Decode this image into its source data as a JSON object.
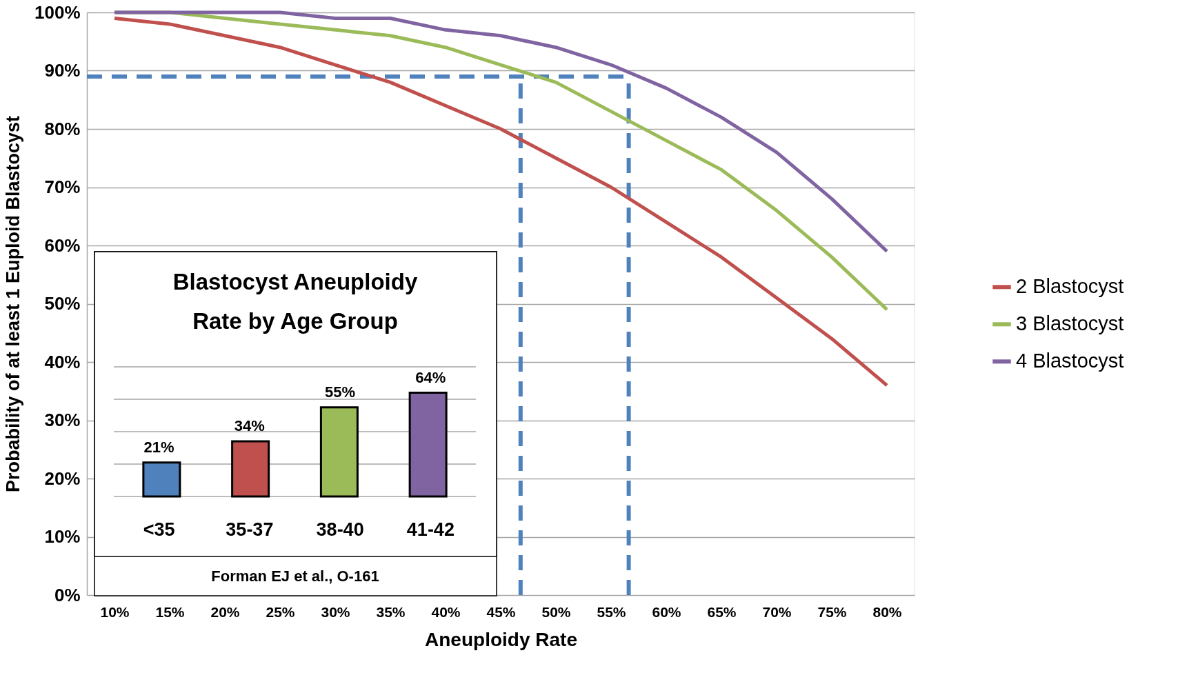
{
  "chart_data": [
    {
      "type": "line",
      "xlabel": "Aneuploidy Rate",
      "ylabel": "Probability of at least 1 Euploid Blastocyst",
      "x": [
        10,
        15,
        20,
        25,
        30,
        35,
        40,
        45,
        50,
        55,
        60,
        65,
        70,
        75,
        80
      ],
      "xlim": [
        7.5,
        82.5
      ],
      "xticks": [
        {
          "value": 10,
          "label": "10%"
        },
        {
          "value": 15,
          "label": "15%"
        },
        {
          "value": 20,
          "label": "20%"
        },
        {
          "value": 25,
          "label": "25%"
        },
        {
          "value": 30,
          "label": "30%"
        },
        {
          "value": 35,
          "label": "35%"
        },
        {
          "value": 40,
          "label": "40%"
        },
        {
          "value": 45,
          "label": "45%"
        },
        {
          "value": 50,
          "label": "50%"
        },
        {
          "value": 55,
          "label": "55%"
        },
        {
          "value": 60,
          "label": "60%"
        },
        {
          "value": 65,
          "label": "65%"
        },
        {
          "value": 70,
          "label": "70%"
        },
        {
          "value": 75,
          "label": "75%"
        },
        {
          "value": 80,
          "label": "80%"
        }
      ],
      "ylim": [
        0,
        100
      ],
      "yticks": [
        {
          "value": 0,
          "label": "0%"
        },
        {
          "value": 10,
          "label": "10%"
        },
        {
          "value": 20,
          "label": "20%"
        },
        {
          "value": 30,
          "label": "30%"
        },
        {
          "value": 40,
          "label": "40%"
        },
        {
          "value": 50,
          "label": "50%"
        },
        {
          "value": 60,
          "label": "60%"
        },
        {
          "value": 70,
          "label": "70%"
        },
        {
          "value": 80,
          "label": "80%"
        },
        {
          "value": 90,
          "label": "90%"
        },
        {
          "value": 100,
          "label": "100%"
        }
      ],
      "grid": "y",
      "legend": "right",
      "marker": "none",
      "series": [
        {
          "name": "2 Blastocyst",
          "color": "#c0504d",
          "line_style": "solid",
          "values": [
            99,
            98,
            96,
            94,
            91,
            88,
            84,
            80,
            75,
            70,
            64,
            58,
            51,
            44,
            36
          ]
        },
        {
          "name": "3 Blastocyst",
          "color": "#9bbb59",
          "line_style": "solid",
          "values": [
            100,
            100,
            99,
            98,
            97,
            96,
            94,
            91,
            88,
            83,
            78,
            73,
            66,
            58,
            49
          ]
        },
        {
          "name": "4 Blastocyst",
          "color": "#8064a2",
          "line_style": "solid",
          "values": [
            100,
            100,
            100,
            100,
            99,
            99,
            97,
            96,
            94,
            91,
            87,
            82,
            76,
            68,
            59
          ]
        },
        {
          "type": "line",
          "color": "#4f81bd",
          "line_style": "dashed",
          "x": [
            7.5,
            56.6
          ],
          "values": [
            89,
            89
          ]
        },
        {
          "type": "line",
          "color": "#4f81bd",
          "line_style": "dashed",
          "x": [
            46.8,
            46.8
          ],
          "values": [
            0,
            89
          ]
        },
        {
          "type": "line",
          "color": "#4f81bd",
          "line_style": "dashed",
          "x": [
            56.6,
            56.6
          ],
          "values": [
            0,
            89
          ]
        }
      ]
    },
    {
      "type": "bar",
      "title": "Blastocyst Aneuploidy\nRate by Age Group",
      "categories": [
        "<35",
        "35-37",
        "38-40",
        "41-42"
      ],
      "values": [
        21,
        34,
        55,
        64
      ],
      "value_labels": [
        "21%",
        "34%",
        "55%",
        "64%"
      ],
      "colors": [
        "#4f81bd",
        "#c0504d",
        "#9bbb59",
        "#8064a2"
      ],
      "ylim": [
        0,
        80
      ],
      "yticks": [
        {
          "value": 0,
          "label": null
        },
        {
          "value": 20,
          "label": null
        },
        {
          "value": 40,
          "label": null
        },
        {
          "value": 60,
          "label": null
        },
        {
          "value": 80,
          "label": null
        }
      ],
      "grid": "y",
      "annotations": [
        "Forman EJ et al., O-161"
      ]
    }
  ]
}
